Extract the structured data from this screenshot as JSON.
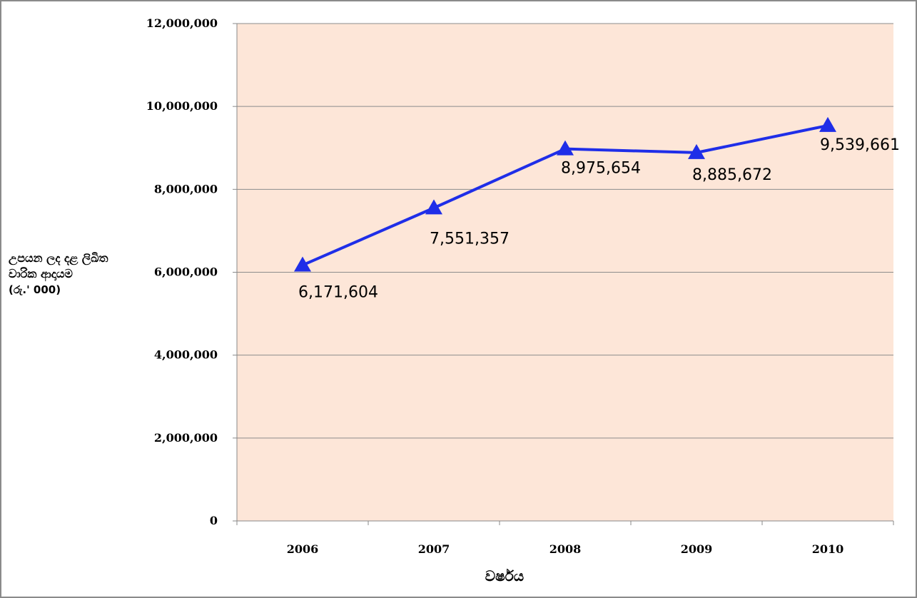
{
  "chart_data": {
    "type": "line",
    "title": "",
    "xlabel": "වර්ෂය",
    "ylabel": [
      "උපයන ලද දළ ලිඛිත",
      "වාරික ආදායම",
      "(රු.' 000)"
    ],
    "categories": [
      "2006",
      "2007",
      "2008",
      "2009",
      "2010"
    ],
    "series": [
      {
        "values": [
          6171604,
          7551357,
          8975654,
          8885672,
          9539661
        ],
        "labels": [
          "6,171,604",
          "7,551,357",
          "8,975,654",
          "8,885,672",
          "9,539,661"
        ],
        "color": "#1f2ee8",
        "marker": "triangle"
      }
    ],
    "ylim": [
      0,
      12000000
    ],
    "yticks": [
      0,
      2000000,
      4000000,
      6000000,
      8000000,
      10000000,
      12000000
    ],
    "ytick_labels": [
      "0",
      "2,000,000",
      "4,000,000",
      "6,000,000",
      "8,000,000",
      "10,000,000",
      "12,000,000"
    ],
    "grid": true,
    "legend": "none",
    "plot_background": "#fde6d8",
    "gridline_color": "#8c8c8c"
  }
}
